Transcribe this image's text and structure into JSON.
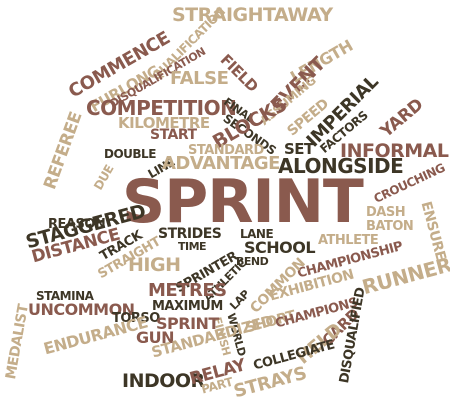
{
  "palette": {
    "brown": "#8a5a4e",
    "tan": "#c4ad8a",
    "dark": "#3d3626",
    "background": "#ffffff"
  },
  "words": {
    "sprint": "SPRINT",
    "straightaway": "STRAIGHTAWAY",
    "commence": "COMMENCE",
    "furlong": "FURLONG",
    "qualification": "QUALIFICATION",
    "disqualification": "DISQUALIFICATION",
    "false": "FALSE",
    "field": "FIELD",
    "length": "LENGTH",
    "event": "EVENT",
    "assuming": "ASSUMING",
    "speed": "SPEED",
    "competition": "COMPETITION",
    "kilometre": "KILOMETRE",
    "final": "FINAL",
    "seconds": "SECONDS",
    "imperial": "IMPERIAL",
    "yard": "YARD",
    "factors": "FACTORS",
    "start": "START",
    "blocks": "BLOCKS",
    "referee": "REFEREE",
    "standard": "STANDARD",
    "set": "SET",
    "informal": "INFORMAL",
    "double": "DOUBLE",
    "line": "LINE",
    "advantage": "ADVANTAGE",
    "alongside": "ALONGSIDE",
    "due": "DUE",
    "crouching": "CROUCHING",
    "reason": "REASON",
    "staggered": "STAGGERED",
    "distance": "DISTANCE",
    "dash": "DASH",
    "baton": "BATON",
    "ensure": "ENSURE",
    "track": "TRACK",
    "straight": "STRAIGHT",
    "strides": "STRIDES",
    "time": "TIME",
    "lane": "LANE",
    "school": "SCHOOL",
    "athlete": "ATHLETE",
    "high": "HIGH",
    "sprinter": "SPRINTER",
    "bend": "BEND",
    "championship": "CHAMPIONSHIP",
    "runner": "RUNNER",
    "stamina": "STAMINA",
    "uncommon": "UNCOMMON",
    "athletic": "ATHLETIC",
    "common": "COMMON",
    "exhibition": "EXHIBITION",
    "medalist": "MEDALIST",
    "metres": "METRES",
    "maximum": "MAXIMUM",
    "lap": "LAP",
    "torso": "TORSO",
    "world": "WORLD",
    "finish": "FINISH",
    "short": "SHORT",
    "champions": "CHAMPIONS",
    "card": "CARD",
    "disqualified": "DISQUALIFIED",
    "gun": "GUN",
    "endurance": "ENDURANCE",
    "standardized": "STANDARDIZED",
    "held": "HELD",
    "collegiate": "COLLEGIATE",
    "indoor": "INDOOR",
    "relay": "RELAY",
    "part": "PART",
    "strays": "STRAYS"
  }
}
